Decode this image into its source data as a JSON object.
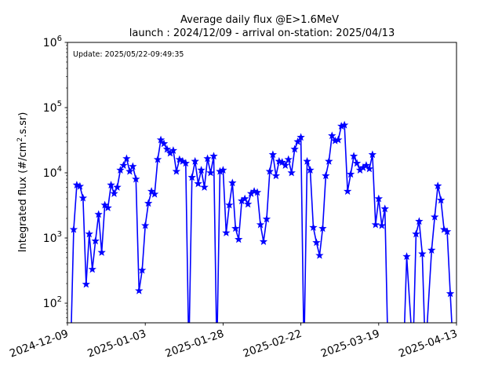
{
  "chart_data": {
    "type": "line",
    "title": "Average daily flux @E>1.6MeV",
    "subtitle": "launch : 2024/12/09 - arrival on-station: 2025/04/13",
    "ylabel": "Integrated flux (#/cm².s.sr)",
    "ylabel_main": "Integrated flux (#/cm",
    "ylabel_sup": "2",
    "ylabel_tail": ".s.sr)",
    "annotation": "Update: 2025/05/22-09:49:35",
    "y_scale": "log",
    "ylim": [
      50,
      1000000
    ],
    "xlim": [
      "2024-12-09",
      "2025-04-13"
    ],
    "x_ticks": [
      "2024-12-09",
      "2025-01-03",
      "2025-01-28",
      "2025-02-22",
      "2025-03-19",
      "2025-04-13"
    ],
    "y_ticks": [
      {
        "value": 100,
        "base": "10",
        "exp": "2"
      },
      {
        "value": 1000,
        "base": "10",
        "exp": "3"
      },
      {
        "value": 10000,
        "base": "10",
        "exp": "4"
      },
      {
        "value": 100000,
        "base": "10",
        "exp": "5"
      },
      {
        "value": 1000000,
        "base": "10",
        "exp": "6"
      }
    ],
    "grid": false,
    "color": "#0000ff",
    "marker": "star",
    "series": [
      {
        "values": [
          [
            "2024-12-11",
            1350
          ],
          [
            "2024-12-12",
            6500
          ],
          [
            "2024-12-13",
            6200
          ],
          [
            "2024-12-14",
            4100
          ],
          [
            "2024-12-15",
            195
          ],
          [
            "2024-12-16",
            1150
          ],
          [
            "2024-12-17",
            330
          ],
          [
            "2024-12-18",
            900
          ],
          [
            "2024-12-19",
            2300
          ],
          [
            "2024-12-20",
            600
          ],
          [
            "2024-12-21",
            3200
          ],
          [
            "2024-12-22",
            2900
          ],
          [
            "2024-12-23",
            6500
          ],
          [
            "2024-12-24",
            4800
          ],
          [
            "2024-12-25",
            6000
          ],
          [
            "2024-12-26",
            11000
          ],
          [
            "2024-12-27",
            13000
          ],
          [
            "2024-12-28",
            16500
          ],
          [
            "2024-12-29",
            10500
          ],
          [
            "2024-12-30",
            12500
          ],
          [
            "2024-12-31",
            8000
          ],
          [
            "2025-01-01",
            155
          ],
          [
            "2025-01-02",
            320
          ],
          [
            "2025-01-03",
            1550
          ],
          [
            "2025-01-04",
            3400
          ],
          [
            "2025-01-05",
            5200
          ],
          [
            "2025-01-06",
            4700
          ],
          [
            "2025-01-07",
            16000
          ],
          [
            "2025-01-08",
            32000
          ],
          [
            "2025-01-09",
            28000
          ],
          [
            "2025-01-10",
            23000
          ],
          [
            "2025-01-11",
            20000
          ],
          [
            "2025-01-12",
            22000
          ],
          [
            "2025-01-13",
            10500
          ],
          [
            "2025-01-14",
            16000
          ],
          [
            "2025-01-15",
            15000
          ],
          [
            "2025-01-16",
            14000
          ],
          [
            "2025-01-18",
            8500
          ],
          [
            "2025-01-19",
            15000
          ],
          [
            "2025-01-20",
            6800
          ],
          [
            "2025-01-21",
            11000
          ],
          [
            "2025-01-22",
            6000
          ],
          [
            "2025-01-23",
            16500
          ],
          [
            "2025-01-24",
            10000
          ],
          [
            "2025-01-25",
            18000
          ],
          [
            "2025-01-27",
            10500
          ],
          [
            "2025-01-28",
            11000
          ],
          [
            "2025-01-29",
            1200
          ],
          [
            "2025-01-30",
            3200
          ],
          [
            "2025-01-31",
            7000
          ],
          [
            "2025-02-01",
            1400
          ],
          [
            "2025-02-02",
            950
          ],
          [
            "2025-02-03",
            3700
          ],
          [
            "2025-02-04",
            4000
          ],
          [
            "2025-02-05",
            3300
          ],
          [
            "2025-02-06",
            4800
          ],
          [
            "2025-02-07",
            5200
          ],
          [
            "2025-02-08",
            5000
          ],
          [
            "2025-02-09",
            1600
          ],
          [
            "2025-02-10",
            880
          ],
          [
            "2025-02-11",
            1950
          ],
          [
            "2025-02-12",
            10500
          ],
          [
            "2025-02-13",
            19000
          ],
          [
            "2025-02-14",
            9000
          ],
          [
            "2025-02-15",
            15000
          ],
          [
            "2025-02-16",
            14500
          ],
          [
            "2025-02-17",
            13000
          ],
          [
            "2025-02-18",
            16000
          ],
          [
            "2025-02-19",
            10000
          ],
          [
            "2025-02-20",
            23000
          ],
          [
            "2025-02-21",
            30000
          ],
          [
            "2025-02-22",
            35000
          ],
          [
            "2025-02-24",
            15000
          ],
          [
            "2025-02-25",
            11000
          ],
          [
            "2025-02-26",
            1450
          ],
          [
            "2025-02-27",
            850
          ],
          [
            "2025-02-28",
            540
          ],
          [
            "2025-03-01",
            1400
          ],
          [
            "2025-03-02",
            9000
          ],
          [
            "2025-03-03",
            15000
          ],
          [
            "2025-03-04",
            37000
          ],
          [
            "2025-03-05",
            31000
          ],
          [
            "2025-03-06",
            32000
          ],
          [
            "2025-03-07",
            52000
          ],
          [
            "2025-03-08",
            54000
          ],
          [
            "2025-03-09",
            5200
          ],
          [
            "2025-03-10",
            9500
          ],
          [
            "2025-03-11",
            18000
          ],
          [
            "2025-03-12",
            14000
          ],
          [
            "2025-03-13",
            11000
          ],
          [
            "2025-03-14",
            12000
          ],
          [
            "2025-03-15",
            13000
          ],
          [
            "2025-03-16",
            11500
          ],
          [
            "2025-03-17",
            19000
          ],
          [
            "2025-03-18",
            1600
          ],
          [
            "2025-03-19",
            4000
          ],
          [
            "2025-03-20",
            1550
          ],
          [
            "2025-03-21",
            2800
          ],
          [
            "2025-03-28",
            520
          ],
          [
            "2025-03-31",
            1150
          ],
          [
            "2025-04-01",
            1800
          ],
          [
            "2025-04-02",
            570
          ],
          [
            "2025-04-05",
            650
          ],
          [
            "2025-04-06",
            2100
          ],
          [
            "2025-04-07",
            6300
          ],
          [
            "2025-04-08",
            3800
          ],
          [
            "2025-04-09",
            1350
          ],
          [
            "2025-04-10",
            1250
          ],
          [
            "2025-04-11",
            140
          ]
        ],
        "drops_to_zero": [
          "2024-12-10",
          "2025-01-17",
          "2025-01-26",
          "2025-02-23",
          "2025-03-22",
          "2025-03-27",
          "2025-03-30",
          "2025-04-03",
          "2025-04-12"
        ]
      }
    ]
  }
}
